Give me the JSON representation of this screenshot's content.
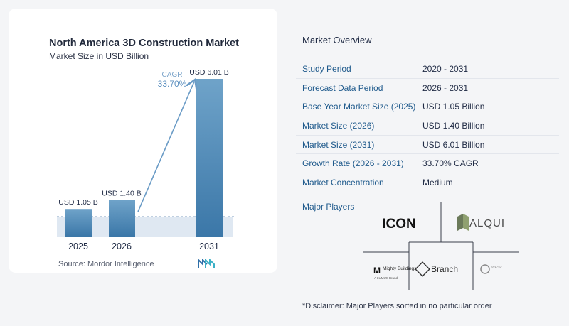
{
  "chart_data": {
    "type": "bar",
    "title": "North America 3D Construction Market",
    "subtitle": "Market Size in USD Billion",
    "categories": [
      "2025",
      "2026",
      "2031"
    ],
    "values": [
      1.05,
      1.4,
      6.01
    ],
    "value_labels": [
      "USD 1.05 B",
      "USD 1.40 B",
      "USD 6.01 B"
    ],
    "ylim": [
      0,
      6.5
    ],
    "cagr_label": "CAGR",
    "cagr_value": "33.70%",
    "colors": {
      "bar_top": "#6fa3c9",
      "bar_bottom": "#3b77a8",
      "arrow": "#6a9bc6",
      "cagr": "#5b8fbf",
      "reference_band": "#dfe8f2"
    }
  },
  "source": "Source:  Mordor Intelligence",
  "source_logo": "mordor-intelligence-logo",
  "overview": {
    "title": "Market Overview",
    "rows": [
      {
        "label": "Study Period",
        "value": "2020 - 2031"
      },
      {
        "label": "Forecast Data Period",
        "value": "2026 - 2031"
      },
      {
        "label": "Base Year Market Size (2025)",
        "value": "USD 1.05 Billion"
      },
      {
        "label": "Market Size (2026)",
        "value": "USD 1.40 Billion"
      },
      {
        "label": "Market Size (2031)",
        "value": "USD 6.01 Billion"
      },
      {
        "label": "Growth Rate (2026 - 2031)",
        "value": "33.70% CAGR"
      },
      {
        "label": "Market Concentration",
        "value": "Medium"
      }
    ]
  },
  "players": {
    "title": "Major Players",
    "logos": [
      "ICON",
      "ALQUI",
      "Mighty Buildings",
      "Branch",
      "WASP"
    ],
    "logo_texts": {
      "icon": "ICON",
      "alqui": "ALQUI",
      "mighty": "Mighty Buildings",
      "mighty_sub": "A LUMUS Brand",
      "branch": "Branch",
      "wasp": "WASP"
    }
  },
  "disclaimer": "*Disclaimer: Major Players sorted in no particular order"
}
